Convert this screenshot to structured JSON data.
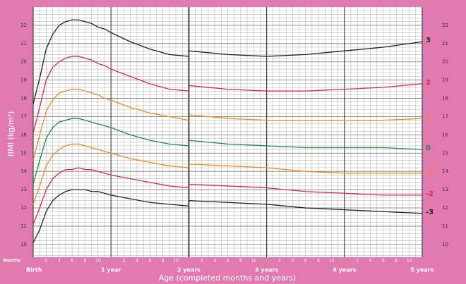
{
  "chart_data": {
    "type": "line",
    "x_label": "Age (completed months and years)",
    "y_label": "BMI (kg/m²)",
    "months_label": "Months",
    "x": [
      0,
      1,
      2,
      3,
      4,
      5,
      6,
      7,
      8,
      9,
      10,
      11,
      12,
      15,
      18,
      21,
      24,
      24,
      24,
      30,
      36,
      42,
      48,
      54,
      60
    ],
    "xlim": [
      0,
      60
    ],
    "ylim": [
      9.3,
      23
    ],
    "xticks": [
      {
        "value": 0,
        "label": "Birth"
      },
      {
        "value": 12,
        "label": "1 year"
      },
      {
        "value": 24,
        "label": "2 years"
      },
      {
        "value": 36,
        "label": "3 years"
      },
      {
        "value": 48,
        "label": "4 years"
      },
      {
        "value": 60,
        "label": "5 years"
      }
    ],
    "xticks_minor": [
      2,
      4,
      6,
      8,
      10,
      {
        "value": 14,
        "label": "2"
      },
      {
        "value": 16,
        "label": "4"
      },
      {
        "value": 18,
        "label": "6"
      },
      {
        "value": 20,
        "label": "8"
      },
      {
        "value": 22,
        "label": "10"
      },
      {
        "value": 26,
        "label": "2"
      },
      {
        "value": 28,
        "label": "4"
      },
      {
        "value": 30,
        "label": "6"
      },
      {
        "value": 32,
        "label": "8"
      },
      {
        "value": 34,
        "label": "10"
      },
      {
        "value": 38,
        "label": "2"
      },
      {
        "value": 40,
        "label": "4"
      },
      {
        "value": 42,
        "label": "6"
      },
      {
        "value": 44,
        "label": "8"
      },
      {
        "value": 46,
        "label": "10"
      },
      {
        "value": 50,
        "label": "2"
      },
      {
        "value": 52,
        "label": "4"
      },
      {
        "value": 54,
        "label": "6"
      },
      {
        "value": 56,
        "label": "8"
      },
      {
        "value": 58,
        "label": "10"
      }
    ],
    "yticks": [
      10,
      11,
      12,
      13,
      14,
      15,
      16,
      17,
      18,
      19,
      20,
      21,
      22
    ],
    "grid": true,
    "series": [
      {
        "name": "3",
        "color": "#222222",
        "values": [
          17.7,
          19.1,
          20.7,
          21.5,
          22.0,
          22.2,
          22.3,
          22.3,
          22.2,
          22.1,
          21.9,
          21.8,
          21.6,
          21.1,
          20.7,
          20.4,
          20.3,
          null,
          20.6,
          20.4,
          20.3,
          20.4,
          20.6,
          20.8,
          21.1
        ]
      },
      {
        "name": "2",
        "color": "#d42a4a",
        "values": [
          16.1,
          17.5,
          19.0,
          19.7,
          20.0,
          20.2,
          20.3,
          20.3,
          20.2,
          20.1,
          19.9,
          19.8,
          19.6,
          19.2,
          18.8,
          18.5,
          18.4,
          null,
          18.7,
          18.5,
          18.4,
          18.4,
          18.5,
          18.6,
          18.8
        ]
      },
      {
        "name": "1",
        "color": "#f08a24",
        "values": [
          14.6,
          16.0,
          17.3,
          17.9,
          18.3,
          18.4,
          18.5,
          18.5,
          18.4,
          18.3,
          18.2,
          18.0,
          17.9,
          17.5,
          17.2,
          17.0,
          16.8,
          null,
          17.1,
          16.9,
          16.8,
          16.8,
          16.8,
          16.8,
          16.9
        ]
      },
      {
        "name": "0",
        "color": "#1a8a4a",
        "values": [
          13.3,
          14.6,
          15.8,
          16.4,
          16.7,
          16.8,
          16.9,
          16.9,
          16.8,
          16.7,
          16.6,
          16.5,
          16.4,
          16.0,
          15.7,
          15.5,
          15.4,
          null,
          15.7,
          15.5,
          15.4,
          15.3,
          15.3,
          15.3,
          15.2
        ]
      },
      {
        "name": "-1",
        "color": "#f08a24",
        "values": [
          12.2,
          13.2,
          14.3,
          14.9,
          15.2,
          15.4,
          15.5,
          15.5,
          15.4,
          15.3,
          15.2,
          15.1,
          15.0,
          14.7,
          14.5,
          14.3,
          14.2,
          null,
          14.4,
          14.3,
          14.2,
          14.0,
          13.9,
          13.9,
          13.9
        ]
      },
      {
        "name": "-2",
        "color": "#d42a4a",
        "values": [
          11.1,
          12.0,
          13.0,
          13.6,
          13.9,
          14.1,
          14.1,
          14.2,
          14.1,
          14.1,
          14.0,
          13.9,
          13.8,
          13.6,
          13.4,
          13.2,
          13.1,
          null,
          13.3,
          13.2,
          13.1,
          12.9,
          12.8,
          12.7,
          12.7
        ]
      },
      {
        "name": "-3",
        "color": "#222222",
        "values": [
          10.1,
          10.8,
          11.8,
          12.4,
          12.7,
          12.9,
          13.0,
          13.0,
          13.0,
          12.9,
          12.9,
          12.8,
          12.7,
          12.5,
          12.3,
          12.2,
          12.1,
          null,
          12.4,
          12.3,
          12.2,
          12.0,
          11.9,
          11.8,
          11.7
        ]
      }
    ]
  }
}
